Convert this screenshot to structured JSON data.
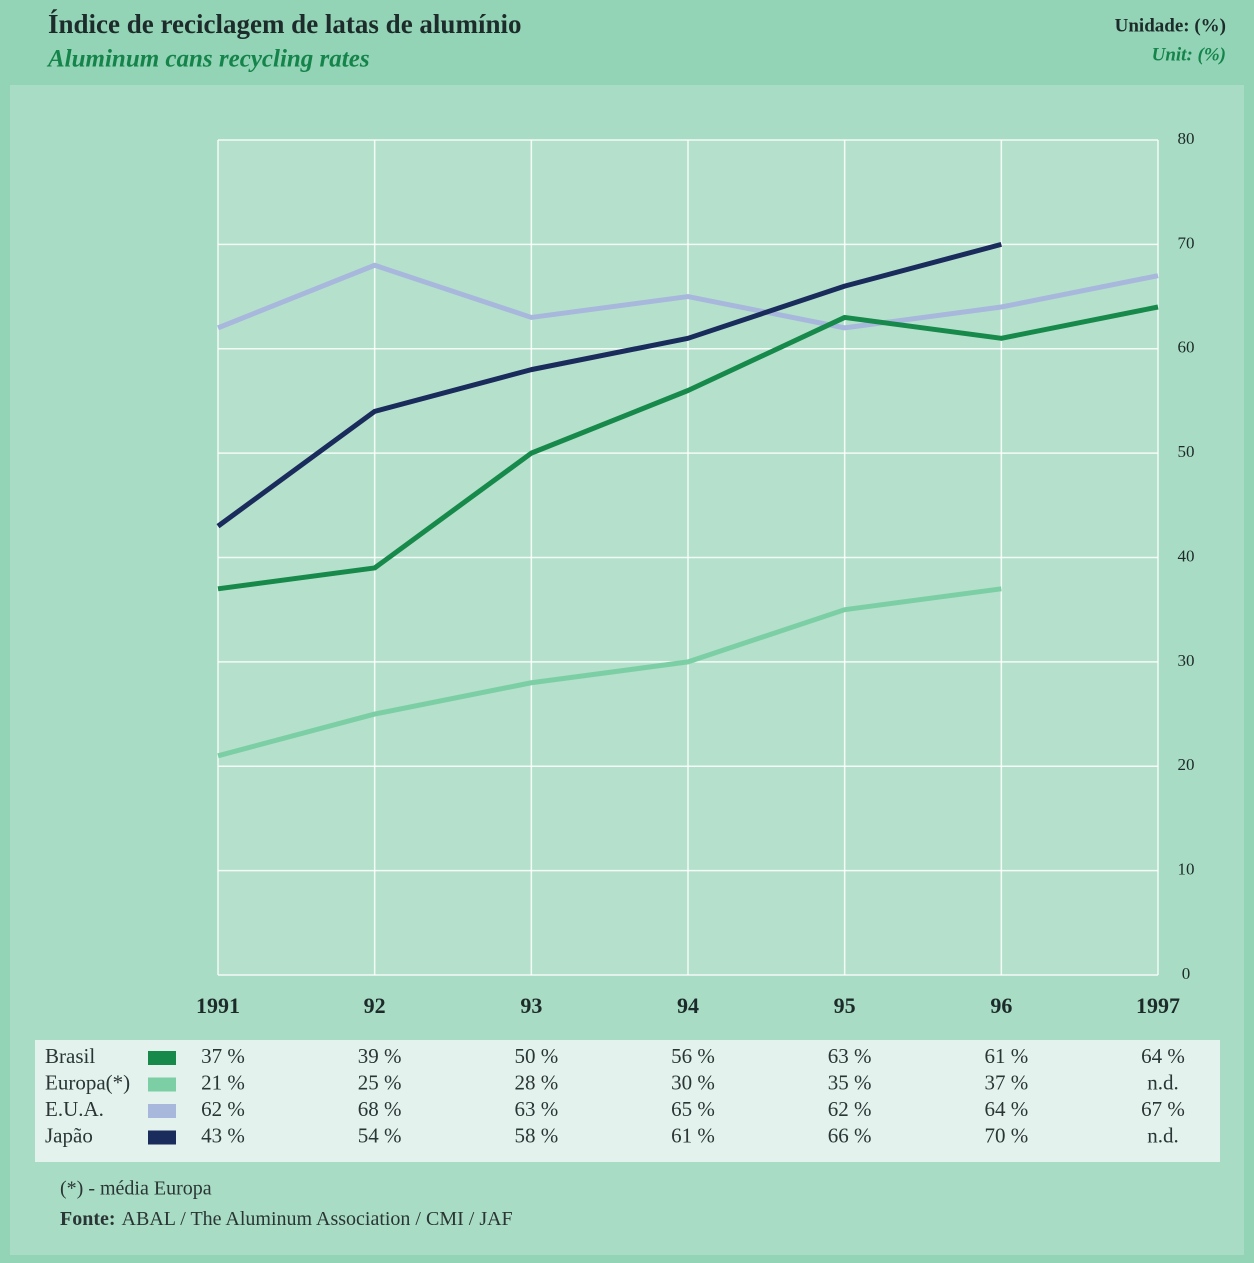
{
  "chart_data": {
    "type": "line",
    "title": "Índice de reciclagem de latas de alumínio",
    "subtitle": "Aluminum cans recycling rates",
    "unit_label": "Unidade: (%)",
    "unit_label_en": "Unit: (%)",
    "categories": [
      "1991",
      "92",
      "93",
      "94",
      "95",
      "96",
      "1997"
    ],
    "series": [
      {
        "name": "Brasil",
        "color": "#178a4b",
        "values": [
          37,
          39,
          50,
          56,
          63,
          61,
          64
        ],
        "value_labels": [
          "37 %",
          "39 %",
          "50 %",
          "56 %",
          "63 %",
          "61 %",
          "64 %"
        ]
      },
      {
        "name": "Europa(*)",
        "color": "#7ccfa5",
        "values": [
          21,
          25,
          28,
          30,
          35,
          37,
          null
        ],
        "value_labels": [
          "21 %",
          "25 %",
          "28 %",
          "30 %",
          "35 %",
          "37 %",
          "n.d."
        ]
      },
      {
        "name": "E.U.A.",
        "color": "#a8b8dc",
        "values": [
          62,
          68,
          63,
          65,
          62,
          64,
          67
        ],
        "value_labels": [
          "62 %",
          "68 %",
          "63 %",
          "65 %",
          "62 %",
          "64 %",
          "67 %"
        ]
      },
      {
        "name": "Japão",
        "color": "#1a2c5c",
        "values": [
          43,
          54,
          58,
          61,
          66,
          70,
          null
        ],
        "value_labels": [
          "43 %",
          "54 %",
          "58 %",
          "61 %",
          "66 %",
          "70 %",
          "n.d."
        ]
      }
    ],
    "ylim": [
      0,
      80
    ],
    "yticks": [
      0,
      10,
      20,
      30,
      40,
      50,
      60,
      70,
      80
    ],
    "grid": true,
    "footnote": "(*) - média Europa",
    "source_label": "Fonte:",
    "source": "ABAL / The Aluminum Association / CMI / JAF"
  }
}
